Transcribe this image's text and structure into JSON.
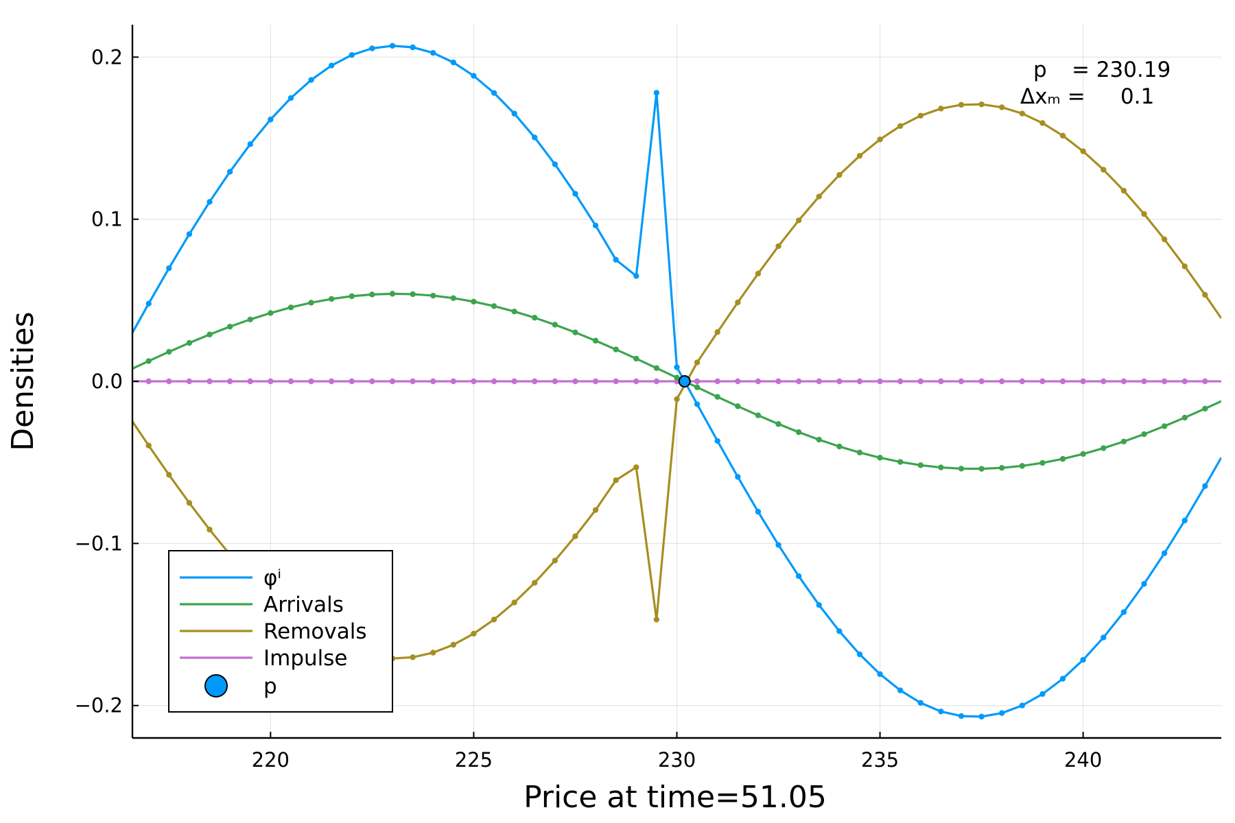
{
  "chart_data": {
    "type": "line",
    "xlabel": "Price at time=51.05",
    "ylabel": "Densities",
    "xlim": [
      216.6,
      243.4
    ],
    "ylim": [
      -0.22,
      0.22
    ],
    "xticks": [
      220,
      225,
      230,
      235,
      240
    ],
    "xtick_labels": [
      "220",
      "225",
      "230",
      "235",
      "240"
    ],
    "yticks": [
      -0.2,
      -0.1,
      0.0,
      0.1,
      0.2
    ],
    "ytick_labels": [
      "−0.2",
      "−0.1",
      "0.0",
      "0.1",
      "0.2"
    ],
    "grid": true,
    "legend_position": "bottom-left",
    "x_start": 216.6,
    "x_step": 0.5,
    "kink_left": 229.0,
    "kink_right": 229.5,
    "series": [
      {
        "name": "φⁱ",
        "color": "#009AFA",
        "amplitude": 0.207,
        "period": 28.5,
        "phase_zero": 230.19,
        "overrides": {
          "229.5": 0.178,
          "229.0": 0.065,
          "228.5": 0.075
        }
      },
      {
        "name": "Arrivals",
        "color": "#3DA44E",
        "amplitude": 0.054,
        "period": 28.5,
        "phase_zero": 230.19,
        "overrides": {}
      },
      {
        "name": "Removals",
        "color": "#A78E21",
        "amplitude": -0.171,
        "period": 28.5,
        "phase_zero": 230.19,
        "overrides": {
          "229.5": -0.147,
          "229.0": -0.053,
          "228.5": -0.061,
          "230.0": -0.011
        }
      },
      {
        "name": "Impulse",
        "color": "#C271D2",
        "amplitude": 0.0,
        "period": 28.5,
        "phase_zero": 230.19,
        "overrides": {}
      }
    ],
    "marker_point": {
      "name": "p",
      "x": 230.19,
      "y": 0.0,
      "color": "#009AFA"
    },
    "annotation": {
      "line1_label": "p",
      "line1_value": "= 230.19",
      "line2_label": "Δxₘ =",
      "line2_value": "0.1"
    }
  }
}
